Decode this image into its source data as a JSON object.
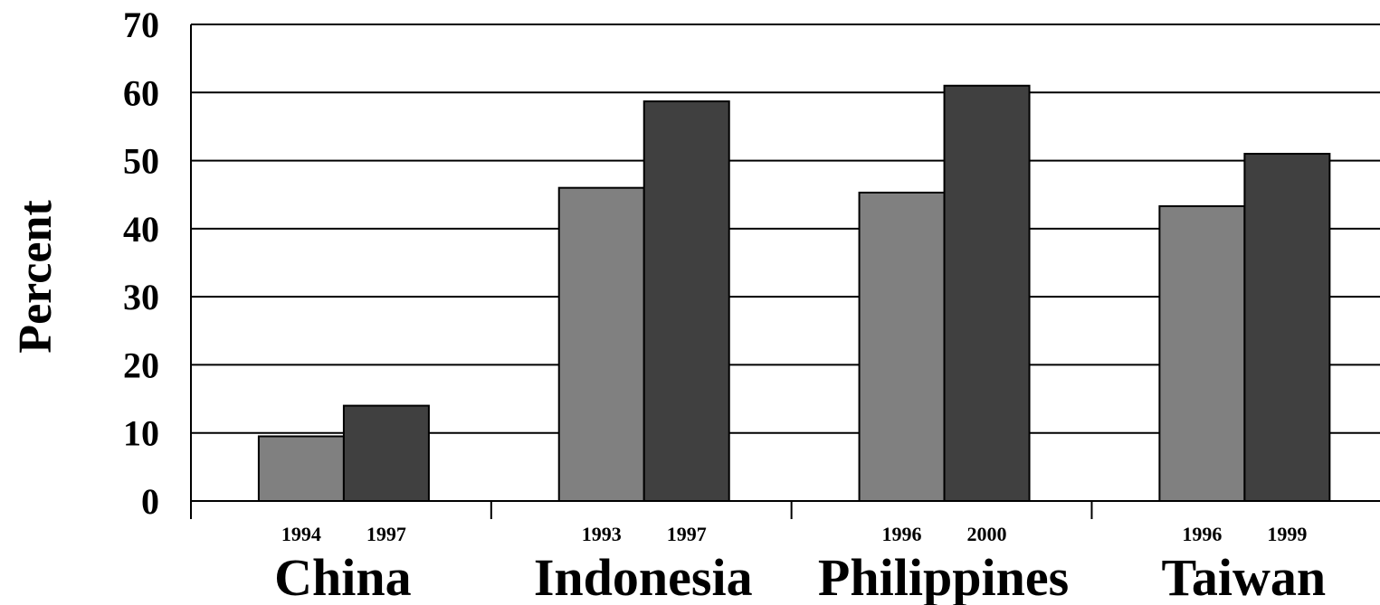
{
  "chart_data": {
    "type": "bar",
    "title": "",
    "xlabel": "",
    "ylabel": "Percent",
    "ylim": [
      0,
      70
    ],
    "yticks": [
      0,
      10,
      20,
      30,
      40,
      50,
      60,
      70
    ],
    "grid": true,
    "legend": "none",
    "categories": [
      "China",
      "Indonesia",
      "Philippines",
      "Taiwan"
    ],
    "groups": [
      {
        "country": "China",
        "bars": [
          {
            "year": "1994",
            "value": 9.5,
            "color": "#808080"
          },
          {
            "year": "1997",
            "value": 14,
            "color": "#404040"
          }
        ]
      },
      {
        "country": "Indonesia",
        "bars": [
          {
            "year": "1993",
            "value": 46,
            "color": "#808080"
          },
          {
            "year": "1997",
            "value": 58.7,
            "color": "#404040"
          }
        ]
      },
      {
        "country": "Philippines",
        "bars": [
          {
            "year": "1996",
            "value": 45.3,
            "color": "#808080"
          },
          {
            "year": "2000",
            "value": 61,
            "color": "#404040"
          }
        ]
      },
      {
        "country": "Taiwan",
        "bars": [
          {
            "year": "1996",
            "value": 43.3,
            "color": "#808080"
          },
          {
            "year": "1999",
            "value": 51,
            "color": "#404040"
          }
        ]
      }
    ]
  },
  "colors": {
    "earlier_year_bar": "#808080",
    "later_year_bar": "#404040",
    "axis": "#000000",
    "background": "#ffffff"
  }
}
